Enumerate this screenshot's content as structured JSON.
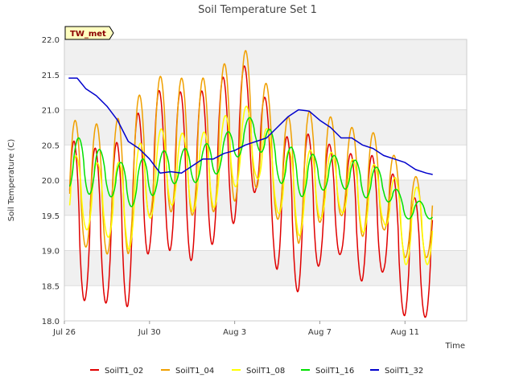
{
  "chart_data": {
    "type": "line",
    "title": "Soil Temperature Set 1",
    "xlabel": "Time",
    "ylabel": "Soil Temperature (C)",
    "badge": "TW_met",
    "x_unit": "days",
    "xlim": [
      "Jul 26",
      "Aug 14"
    ],
    "ylim": [
      18.0,
      22.0
    ],
    "yticks": [
      18.0,
      18.5,
      19.0,
      19.5,
      20.0,
      20.5,
      21.0,
      21.5,
      22.0
    ],
    "xticks": [
      {
        "label": "Jul 26",
        "day": 0
      },
      {
        "label": "Jul 30",
        "day": 4
      },
      {
        "label": "Aug 3",
        "day": 8
      },
      {
        "label": "Aug 7",
        "day": 12
      },
      {
        "label": "Aug 11",
        "day": 16
      }
    ],
    "grid": true,
    "legend_position": "bottom",
    "series": [
      {
        "name": "SoilT1_02",
        "color": "#e00000",
        "min": [
          18.05,
          18.3,
          18.25,
          18.2,
          19.0,
          19.0,
          18.85,
          19.1,
          19.4,
          19.85,
          18.7,
          18.4,
          18.8,
          18.95,
          18.55,
          18.7,
          18.05
        ],
        "max": [
          20.6,
          20.5,
          20.4,
          20.7,
          21.25,
          21.3,
          21.2,
          21.35,
          21.6,
          21.65,
          20.55,
          20.7,
          20.6,
          20.4,
          20.35,
          20.35,
          19.75
        ]
      },
      {
        "name": "SoilT1_04",
        "color": "#f0a000",
        "min": [
          18.95,
          19.05,
          18.95,
          18.95,
          19.5,
          19.55,
          19.5,
          19.55,
          19.7,
          19.9,
          19.45,
          19.1,
          19.4,
          19.5,
          19.2,
          19.3,
          18.9
        ],
        "max": [
          20.9,
          20.8,
          20.8,
          20.95,
          21.45,
          21.5,
          21.4,
          21.5,
          21.8,
          21.88,
          20.85,
          20.95,
          21.0,
          20.8,
          20.7,
          20.65,
          20.05
        ]
      },
      {
        "name": "SoilT1_08",
        "color": "#ffff00",
        "min": [
          19.35,
          19.3,
          19.2,
          19.0,
          19.45,
          19.65,
          19.55,
          19.6,
          19.9,
          20.05,
          19.55,
          19.2,
          19.45,
          19.55,
          19.25,
          19.4,
          18.8
        ],
        "max": [
          20.4,
          20.3,
          20.2,
          20.3,
          20.7,
          20.75,
          20.6,
          20.75,
          21.05,
          21.05,
          20.45,
          20.4,
          20.45,
          20.35,
          20.25,
          20.2,
          19.9
        ]
      },
      {
        "name": "SoilT1_16",
        "color": "#00e000",
        "min": [
          19.9,
          19.8,
          19.8,
          19.6,
          19.75,
          19.95,
          19.95,
          20.05,
          20.3,
          20.5,
          20.0,
          19.75,
          19.85,
          19.9,
          19.75,
          19.75,
          19.45
        ],
        "max": [
          20.6,
          20.6,
          20.35,
          20.2,
          20.35,
          20.45,
          20.45,
          20.55,
          20.75,
          20.95,
          20.6,
          20.4,
          20.35,
          20.35,
          20.25,
          20.15,
          19.7
        ]
      },
      {
        "name": "SoilT1_32",
        "color": "#0000cc",
        "points": [
          [
            0.2,
            21.45
          ],
          [
            0.6,
            21.45
          ],
          [
            1.0,
            21.3
          ],
          [
            1.5,
            21.2
          ],
          [
            2.0,
            21.05
          ],
          [
            2.5,
            20.85
          ],
          [
            3.0,
            20.55
          ],
          [
            3.5,
            20.45
          ],
          [
            4.0,
            20.3
          ],
          [
            4.5,
            20.1
          ],
          [
            5.0,
            20.12
          ],
          [
            5.5,
            20.1
          ],
          [
            6.0,
            20.2
          ],
          [
            6.5,
            20.3
          ],
          [
            7.0,
            20.3
          ],
          [
            7.5,
            20.38
          ],
          [
            8.0,
            20.42
          ],
          [
            8.5,
            20.5
          ],
          [
            9.0,
            20.55
          ],
          [
            9.5,
            20.6
          ],
          [
            10.0,
            20.75
          ],
          [
            10.5,
            20.9
          ],
          [
            11.0,
            21.0
          ],
          [
            11.5,
            20.98
          ],
          [
            12.0,
            20.85
          ],
          [
            12.5,
            20.75
          ],
          [
            13.0,
            20.6
          ],
          [
            13.5,
            20.6
          ],
          [
            14.0,
            20.5
          ],
          [
            14.5,
            20.45
          ],
          [
            15.0,
            20.35
          ],
          [
            15.5,
            20.3
          ],
          [
            16.0,
            20.25
          ],
          [
            16.5,
            20.15
          ],
          [
            17.0,
            20.1
          ],
          [
            17.3,
            20.08
          ]
        ]
      }
    ]
  }
}
